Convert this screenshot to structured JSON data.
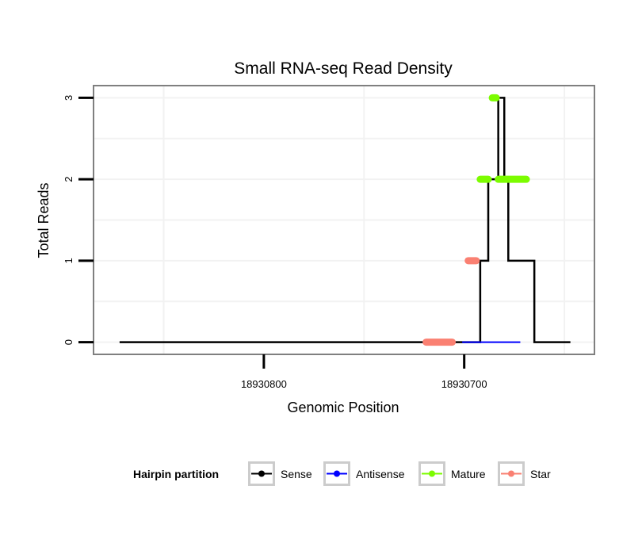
{
  "chart_data": {
    "type": "line",
    "title": "Small RNA-seq Read Density",
    "xlabel": "Genomic Position",
    "ylabel": "Total Reads",
    "x_reversed": true,
    "xlim": [
      18930885,
      18930635
    ],
    "ylim": [
      -0.15,
      3.15
    ],
    "x_ticks": [
      {
        "value": 18930800,
        "label": "18930800"
      },
      {
        "value": 18930700,
        "label": "18930700"
      }
    ],
    "y_ticks": [
      {
        "value": 0,
        "label": "0"
      },
      {
        "value": 1,
        "label": "1"
      },
      {
        "value": 2,
        "label": "2"
      },
      {
        "value": 3,
        "label": "3"
      }
    ],
    "grid": true,
    "colors": {
      "Sense": "#000000",
      "Antisense": "#0000ff",
      "Mature": "#7cfc00",
      "Star": "#fa8072",
      "panel_border": "#7f7f7f",
      "grid": "#f2f2f2"
    },
    "series": [
      {
        "name": "Sense",
        "x": [
          18930872,
          18930692,
          18930692,
          18930688,
          18930688,
          18930683,
          18930683,
          18930680,
          18930680,
          18930678,
          18930678,
          18930665,
          18930665,
          18930660,
          18930660,
          18930657,
          18930657,
          18930647
        ],
        "y": [
          0,
          0,
          1,
          1,
          2,
          2,
          3,
          3,
          2,
          2,
          1,
          1,
          0,
          0,
          0,
          0,
          0,
          0
        ]
      },
      {
        "name": "Antisense",
        "x": [
          18930701,
          18930672
        ],
        "y": [
          0,
          0
        ]
      },
      {
        "name": "Mature",
        "segments": [
          {
            "x": [
              18930692,
              18930688
            ],
            "y": [
              2,
              2
            ]
          },
          {
            "x": [
              18930686,
              18930684
            ],
            "y": [
              3,
              3
            ]
          },
          {
            "x": [
              18930683,
              18930669
            ],
            "y": [
              2,
              2
            ]
          }
        ]
      },
      {
        "name": "Star",
        "segments": [
          {
            "x": [
              18930698,
              18930694
            ],
            "y": [
              1,
              1
            ]
          },
          {
            "x": [
              18930719,
              18930706
            ],
            "y": [
              0,
              0
            ]
          }
        ]
      }
    ]
  },
  "legend": {
    "title": "Hairpin partition",
    "items": [
      {
        "label": "Sense",
        "color": "#000000"
      },
      {
        "label": "Antisense",
        "color": "#0000ff"
      },
      {
        "label": "Mature",
        "color": "#7cfc00"
      },
      {
        "label": "Star",
        "color": "#fa8072"
      }
    ]
  }
}
